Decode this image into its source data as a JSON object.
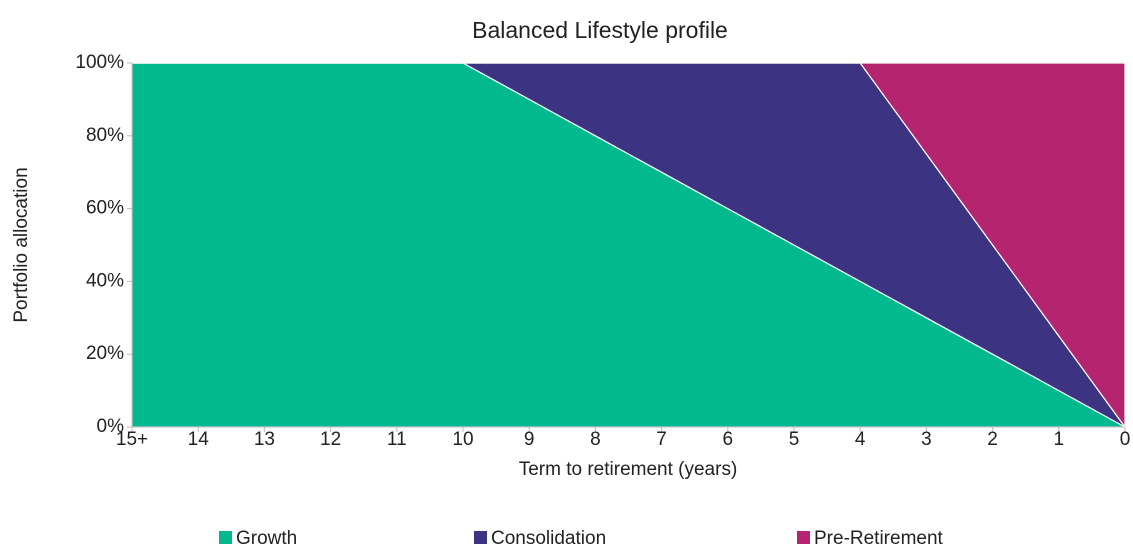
{
  "chart_data": {
    "type": "stacked_area",
    "title": "Balanced Lifestyle profile",
    "x_label": "Term to retirement (years)",
    "y_label": "Portfolio allocation",
    "categories": [
      "15+",
      "14",
      "13",
      "12",
      "11",
      "10",
      "9",
      "8",
      "7",
      "6",
      "5",
      "4",
      "3",
      "2",
      "1",
      "0"
    ],
    "series": [
      {
        "name": "Growth",
        "color": "#00b98e",
        "values": [
          100,
          100,
          100,
          100,
          100,
          100,
          90,
          80,
          70,
          60,
          50,
          40,
          30,
          20,
          10,
          0
        ]
      },
      {
        "name": "Consolidation",
        "color": "#3d3383",
        "values": [
          0,
          0,
          0,
          0,
          0,
          0,
          10,
          20,
          30,
          40,
          50,
          60,
          45,
          30,
          15,
          0
        ]
      },
      {
        "name": "Pre-Retirement",
        "color": "#b5246f",
        "values": [
          0,
          0,
          0,
          0,
          0,
          0,
          0,
          0,
          0,
          0,
          0,
          0,
          25,
          50,
          75,
          100
        ]
      }
    ],
    "ylim": [
      0,
      100
    ],
    "yticks": [
      {
        "value": 0,
        "label": "0%"
      },
      {
        "value": 20,
        "label": "20%"
      },
      {
        "value": 40,
        "label": "40%"
      },
      {
        "value": 60,
        "label": "60%"
      },
      {
        "value": 80,
        "label": "80%"
      },
      {
        "value": 100,
        "label": "100%"
      }
    ],
    "grid": false,
    "legend": "bottom"
  }
}
